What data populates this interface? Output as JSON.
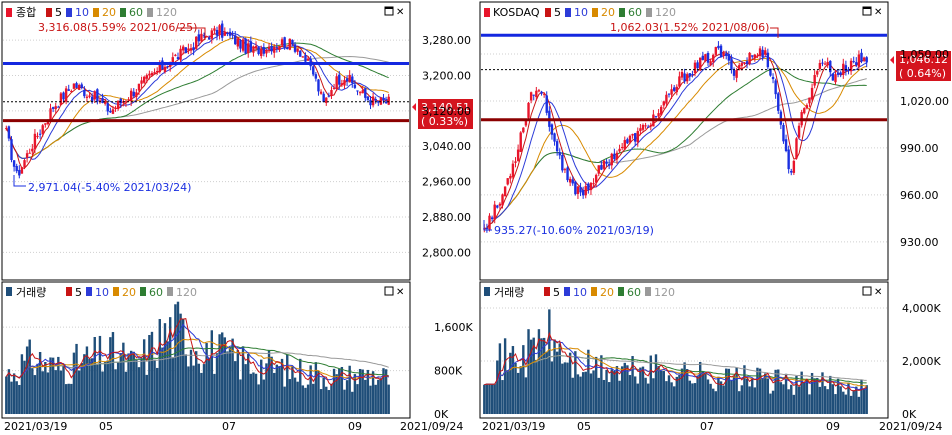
{
  "colors": {
    "up": "#e8152b",
    "down": "#1a2fe0",
    "ma5": "#c81414",
    "ma10": "#2c3bd8",
    "ma20": "#d88a00",
    "ma60": "#2e7d32",
    "ma120": "#9a9a9a",
    "support": "#8b0000",
    "resistance": "#1428e0",
    "volume": "#1f4e79",
    "frame": "#000000",
    "grid": "#cfcfcf"
  },
  "legend": {
    "ma5": "5",
    "ma10": "10",
    "ma20": "20",
    "ma60": "60",
    "ma120": "120",
    "volume_title": "거래량"
  },
  "chart_data": [
    {
      "type": "candlestick",
      "title": "종합",
      "ylim": [
        2760,
        3330
      ],
      "y_ticks": [
        "3,280.00",
        "3,200.00",
        "3,120.00",
        "3,040.00",
        "2,960.00",
        "2,880.00",
        "2,800.00"
      ],
      "y_tick_values": [
        3280,
        3200,
        3120,
        3040,
        2960,
        2880,
        2800
      ],
      "resistance": 3227,
      "support": 3098,
      "dotted_reference": 3140.51,
      "current_price": "3,140.51",
      "current_change": "( 0.33%)",
      "high_annotation": "3,316.08(5.59% 2021/06/25)",
      "low_annotation": "2,971.04(-5.40% 2021/03/24)",
      "anchors": [
        [
          0,
          3070
        ],
        [
          4,
          2972
        ],
        [
          10,
          3045
        ],
        [
          18,
          3130
        ],
        [
          26,
          3180
        ],
        [
          34,
          3150
        ],
        [
          40,
          3120
        ],
        [
          46,
          3150
        ],
        [
          54,
          3190
        ],
        [
          62,
          3230
        ],
        [
          70,
          3260
        ],
        [
          76,
          3290
        ],
        [
          82,
          3300
        ],
        [
          88,
          3280
        ],
        [
          94,
          3255
        ],
        [
          100,
          3265
        ],
        [
          106,
          3275
        ],
        [
          112,
          3265
        ],
        [
          118,
          3205
        ],
        [
          122,
          3135
        ],
        [
          126,
          3185
        ],
        [
          130,
          3200
        ],
        [
          134,
          3175
        ],
        [
          138,
          3150
        ],
        [
          142,
          3140
        ],
        [
          147,
          3140
        ]
      ]
    },
    {
      "type": "candlestick",
      "title": "KOSDAQ",
      "ylim": [
        912,
        1073
      ],
      "y_ticks": [
        "1,050.00",
        "1,020.00",
        "990.00",
        "960.00",
        "930.00"
      ],
      "y_tick_values": [
        1050,
        1020,
        990,
        960,
        930
      ],
      "resistance": 1062,
      "support": 1008,
      "dotted_reference": 1040,
      "current_price": "1,046.12",
      "current_change": "( 0.64%)",
      "high_annotation": "1,062.03(1.52% 2021/08/06)",
      "low_annotation": "935.27(-10.60% 2021/03/19)",
      "anchors": [
        [
          0,
          940
        ],
        [
          6,
          955
        ],
        [
          12,
          985
        ],
        [
          18,
          1025
        ],
        [
          22,
          1028
        ],
        [
          26,
          1000
        ],
        [
          30,
          975
        ],
        [
          34,
          965
        ],
        [
          38,
          962
        ],
        [
          44,
          975
        ],
        [
          52,
          990
        ],
        [
          60,
          1000
        ],
        [
          68,
          1015
        ],
        [
          76,
          1035
        ],
        [
          84,
          1045
        ],
        [
          90,
          1052
        ],
        [
          96,
          1040
        ],
        [
          102,
          1048
        ],
        [
          108,
          1052
        ],
        [
          112,
          1025
        ],
        [
          116,
          985
        ],
        [
          118,
          975
        ],
        [
          122,
          1010
        ],
        [
          126,
          1030
        ],
        [
          130,
          1048
        ],
        [
          134,
          1036
        ],
        [
          138,
          1040
        ],
        [
          142,
          1046
        ],
        [
          147,
          1046
        ]
      ]
    }
  ],
  "volume_data": [
    {
      "ylim": [
        0,
        2100
      ],
      "y_ticks": [
        "1,600K",
        "800K",
        "0K"
      ],
      "y_tick_values": [
        1600,
        800,
        0
      ],
      "anchors": [
        [
          0,
          780
        ],
        [
          10,
          1100
        ],
        [
          20,
          900
        ],
        [
          30,
          1050
        ],
        [
          40,
          1200
        ],
        [
          50,
          950
        ],
        [
          60,
          1550
        ],
        [
          66,
          1700
        ],
        [
          72,
          1400
        ],
        [
          80,
          1250
        ],
        [
          90,
          1050
        ],
        [
          100,
          950
        ],
        [
          110,
          850
        ],
        [
          120,
          800
        ],
        [
          130,
          720
        ],
        [
          140,
          800
        ],
        [
          147,
          700
        ]
      ]
    },
    {
      "ylim": [
        0,
        4300
      ],
      "y_ticks": [
        "4,000K",
        "2,000K",
        "0K"
      ],
      "y_tick_values": [
        4000,
        2000,
        0
      ],
      "anchors": [
        [
          0,
          1900
        ],
        [
          8,
          2200
        ],
        [
          16,
          2400
        ],
        [
          24,
          3200
        ],
        [
          28,
          2600
        ],
        [
          34,
          2000
        ],
        [
          44,
          1800
        ],
        [
          54,
          1700
        ],
        [
          64,
          1800
        ],
        [
          74,
          1700
        ],
        [
          84,
          1550
        ],
        [
          94,
          1450
        ],
        [
          104,
          1400
        ],
        [
          114,
          1300
        ],
        [
          124,
          1250
        ],
        [
          134,
          1200
        ],
        [
          147,
          1150
        ]
      ]
    }
  ],
  "x_axis": {
    "start_date": "2021/03/19",
    "end_date": "2021/09/24",
    "month_labels": [
      "05",
      "07",
      "09"
    ]
  }
}
